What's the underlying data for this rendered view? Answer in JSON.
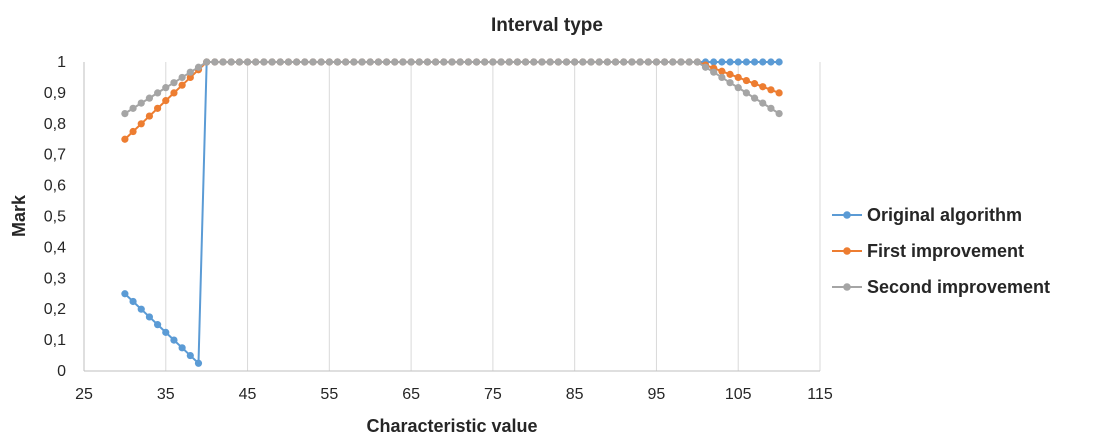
{
  "chart_data": {
    "type": "line",
    "title": "Interval type",
    "xlabel": "Characteristic value",
    "ylabel": "Mark",
    "xlim": [
      25,
      115
    ],
    "ylim": [
      0,
      1
    ],
    "x_ticks": [
      25,
      35,
      45,
      55,
      65,
      75,
      85,
      95,
      105,
      115
    ],
    "x_tick_labels": [
      "25",
      "35",
      "45",
      "55",
      "65",
      "75",
      "85",
      "95",
      "105",
      "115"
    ],
    "y_ticks": [
      0,
      0.1,
      0.2,
      0.3,
      0.4,
      0.5,
      0.6,
      0.7,
      0.8,
      0.9,
      1
    ],
    "y_tick_labels": [
      "0",
      "0,1",
      "0,2",
      "0,3",
      "0,4",
      "0,5",
      "0,6",
      "0,7",
      "0,8",
      "0,9",
      "1"
    ],
    "grid": "vertical",
    "legend_position": "right",
    "x": [
      30,
      31,
      32,
      33,
      34,
      35,
      36,
      37,
      38,
      39,
      40,
      41,
      42,
      43,
      44,
      45,
      46,
      47,
      48,
      49,
      50,
      51,
      52,
      53,
      54,
      55,
      56,
      57,
      58,
      59,
      60,
      61,
      62,
      63,
      64,
      65,
      66,
      67,
      68,
      69,
      70,
      71,
      72,
      73,
      74,
      75,
      76,
      77,
      78,
      79,
      80,
      81,
      82,
      83,
      84,
      85,
      86,
      87,
      88,
      89,
      90,
      91,
      92,
      93,
      94,
      95,
      96,
      97,
      98,
      99,
      100,
      101,
      102,
      103,
      104,
      105,
      106,
      107,
      108,
      109,
      110
    ],
    "series": [
      {
        "name": "Original algorithm",
        "color": "#5b9bd5",
        "values": [
          0.25,
          0.225,
          0.2,
          0.175,
          0.15,
          0.125,
          0.1,
          0.075,
          0.05,
          0.025,
          1,
          1,
          1,
          1,
          1,
          1,
          1,
          1,
          1,
          1,
          1,
          1,
          1,
          1,
          1,
          1,
          1,
          1,
          1,
          1,
          1,
          1,
          1,
          1,
          1,
          1,
          1,
          1,
          1,
          1,
          1,
          1,
          1,
          1,
          1,
          1,
          1,
          1,
          1,
          1,
          1,
          1,
          1,
          1,
          1,
          1,
          1,
          1,
          1,
          1,
          1,
          1,
          1,
          1,
          1,
          1,
          1,
          1,
          1,
          1,
          1,
          1,
          1,
          1,
          1,
          1,
          1,
          1,
          1,
          1,
          1
        ]
      },
      {
        "name": "First improvement",
        "color": "#ed7d31",
        "values": [
          0.75,
          0.775,
          0.8,
          0.825,
          0.85,
          0.875,
          0.9,
          0.925,
          0.95,
          0.975,
          1,
          1,
          1,
          1,
          1,
          1,
          1,
          1,
          1,
          1,
          1,
          1,
          1,
          1,
          1,
          1,
          1,
          1,
          1,
          1,
          1,
          1,
          1,
          1,
          1,
          1,
          1,
          1,
          1,
          1,
          1,
          1,
          1,
          1,
          1,
          1,
          1,
          1,
          1,
          1,
          1,
          1,
          1,
          1,
          1,
          1,
          1,
          1,
          1,
          1,
          1,
          1,
          1,
          1,
          1,
          1,
          1,
          1,
          1,
          1,
          1,
          0.99,
          0.98,
          0.97,
          0.96,
          0.95,
          0.94,
          0.93,
          0.92,
          0.91,
          0.9
        ]
      },
      {
        "name": "Second improvement",
        "color": "#a5a5a5",
        "values": [
          0.833,
          0.85,
          0.867,
          0.883,
          0.9,
          0.917,
          0.933,
          0.95,
          0.967,
          0.983,
          1,
          1,
          1,
          1,
          1,
          1,
          1,
          1,
          1,
          1,
          1,
          1,
          1,
          1,
          1,
          1,
          1,
          1,
          1,
          1,
          1,
          1,
          1,
          1,
          1,
          1,
          1,
          1,
          1,
          1,
          1,
          1,
          1,
          1,
          1,
          1,
          1,
          1,
          1,
          1,
          1,
          1,
          1,
          1,
          1,
          1,
          1,
          1,
          1,
          1,
          1,
          1,
          1,
          1,
          1,
          1,
          1,
          1,
          1,
          1,
          1,
          0.983,
          0.967,
          0.95,
          0.933,
          0.917,
          0.9,
          0.883,
          0.867,
          0.85,
          0.833
        ]
      }
    ]
  }
}
